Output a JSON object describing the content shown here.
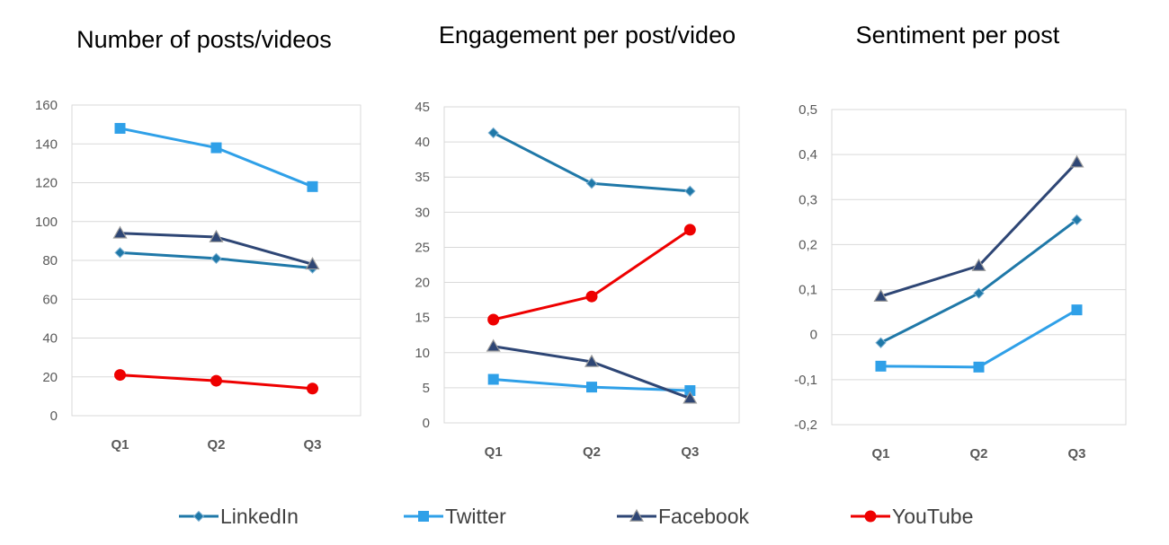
{
  "colors": {
    "LinkedIn": "#1f78a8",
    "Twitter": "#2fa0e8",
    "Facebook": "#2e4675",
    "YouTube": "#ee0000"
  },
  "markers": {
    "LinkedIn": "diamond",
    "Twitter": "square",
    "Facebook": "triangle",
    "YouTube": "circle"
  },
  "legend": [
    "LinkedIn",
    "Twitter",
    "Facebook",
    "YouTube"
  ],
  "chart_data": [
    {
      "type": "line",
      "title": "Number of posts/videos",
      "categories": [
        "Q1",
        "Q2",
        "Q3"
      ],
      "ylim": [
        0,
        160
      ],
      "yticks": [
        0,
        20,
        40,
        60,
        80,
        100,
        120,
        140,
        160
      ],
      "ytick_labels": [
        "0",
        "20",
        "40",
        "60",
        "80",
        "100",
        "120",
        "140",
        "160"
      ],
      "grid": true,
      "series": [
        {
          "name": "LinkedIn",
          "values": [
            84,
            81,
            76
          ]
        },
        {
          "name": "Twitter",
          "values": [
            148,
            138,
            118
          ]
        },
        {
          "name": "Facebook",
          "values": [
            94,
            92,
            78
          ]
        },
        {
          "name": "YouTube",
          "values": [
            21,
            18,
            14
          ]
        }
      ]
    },
    {
      "type": "line",
      "title": "Engagement per post/video",
      "categories": [
        "Q1",
        "Q2",
        "Q3"
      ],
      "ylim": [
        0,
        45
      ],
      "yticks": [
        0,
        5,
        10,
        15,
        20,
        25,
        30,
        35,
        40,
        45
      ],
      "ytick_labels": [
        "0",
        "5",
        "10",
        "15",
        "20",
        "25",
        "30",
        "35",
        "40",
        "45"
      ],
      "grid": true,
      "series": [
        {
          "name": "LinkedIn",
          "values": [
            41.3,
            34.1,
            33.0
          ]
        },
        {
          "name": "Twitter",
          "values": [
            6.2,
            5.1,
            4.6
          ]
        },
        {
          "name": "Facebook",
          "values": [
            10.9,
            8.7,
            3.5
          ]
        },
        {
          "name": "YouTube",
          "values": [
            14.7,
            18.0,
            27.5
          ]
        }
      ]
    },
    {
      "type": "line",
      "title": "Sentiment per post",
      "categories": [
        "Q1",
        "Q2",
        "Q3"
      ],
      "ylim": [
        -0.2,
        0.5
      ],
      "yticks": [
        -0.2,
        -0.1,
        0,
        0.1,
        0.2,
        0.3,
        0.4,
        0.5
      ],
      "ytick_labels": [
        "-0,2",
        "-0,1",
        "0",
        "0,1",
        "0,2",
        "0,3",
        "0,4",
        "0,5"
      ],
      "grid": true,
      "series": [
        {
          "name": "LinkedIn",
          "values": [
            -0.018,
            0.092,
            0.255
          ]
        },
        {
          "name": "Twitter",
          "values": [
            -0.07,
            -0.072,
            0.055
          ]
        },
        {
          "name": "Facebook",
          "values": [
            0.085,
            0.153,
            0.383
          ]
        }
      ]
    }
  ]
}
